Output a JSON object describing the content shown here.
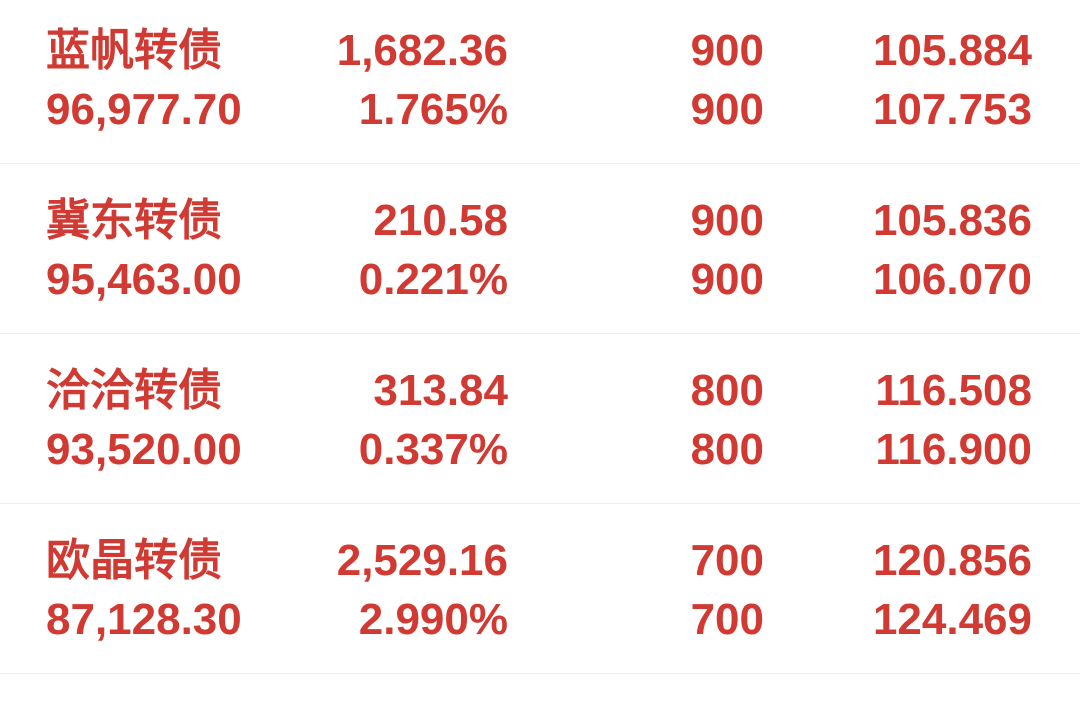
{
  "app": {
    "view": "holdings-list",
    "description_visible_text_only": true
  },
  "colors": {
    "text_red": "#d13a32",
    "divider": "#ececec",
    "background": "#ffffff"
  },
  "rows": [
    {
      "name": "蓝帆转债",
      "line1": [
        "蓝帆转债",
        "1,682.36",
        "900",
        "105.884"
      ],
      "line2": [
        "96,977.70",
        "1.765%",
        "900",
        "107.753"
      ]
    },
    {
      "name": "冀东转债",
      "line1": [
        "冀东转债",
        "210.58",
        "900",
        "105.836"
      ],
      "line2": [
        "95,463.00",
        "0.221%",
        "900",
        "106.070"
      ]
    },
    {
      "name": "洽洽转债",
      "line1": [
        "洽洽转债",
        "313.84",
        "800",
        "116.508"
      ],
      "line2": [
        "93,520.00",
        "0.337%",
        "800",
        "116.900"
      ]
    },
    {
      "name": "欧晶转债",
      "line1": [
        "欧晶转债",
        "2,529.16",
        "700",
        "120.856"
      ],
      "line2": [
        "87,128.30",
        "2.990%",
        "700",
        "124.469"
      ]
    }
  ]
}
